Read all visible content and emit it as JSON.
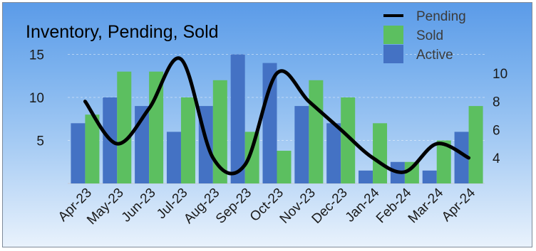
{
  "chart_data": {
    "type": "bar",
    "title": "Inventory, Pending, Sold",
    "categories": [
      "Apr-23",
      "May-23",
      "Jun-23",
      "Jul-23",
      "Aug-23",
      "Sep-23",
      "Oct-23",
      "Nov-23",
      "Dec-23",
      "Jan-24",
      "Feb-24",
      "Mar-24",
      "Apr-24"
    ],
    "series": [
      {
        "name": "Active",
        "kind": "bar",
        "axis": "left",
        "color": "#4472c4",
        "values": [
          7,
          10,
          9,
          6,
          9,
          15,
          14,
          9,
          7,
          1.5,
          2.5,
          1.5,
          6
        ]
      },
      {
        "name": "Sold",
        "kind": "bar",
        "axis": "left",
        "color": "#5cbf60",
        "values": [
          8,
          13,
          13,
          10,
          12,
          6,
          3.8,
          12,
          10,
          7,
          2.5,
          5,
          9
        ]
      },
      {
        "name": "Pending",
        "kind": "line",
        "axis": "right",
        "color": "#000000",
        "values": [
          8,
          5,
          7.5,
          11,
          4,
          3.5,
          10,
          8,
          6,
          4,
          3,
          5,
          4
        ]
      }
    ],
    "y_left": {
      "ticks": [
        5,
        10,
        15
      ],
      "range": [
        0,
        16.5
      ]
    },
    "y_right": {
      "ticks": [
        4,
        6,
        8,
        10
      ],
      "range": [
        2,
        11.6
      ]
    },
    "legend": {
      "position": "top-right",
      "order": [
        "Pending",
        "Sold",
        "Active"
      ]
    },
    "grid": true
  }
}
